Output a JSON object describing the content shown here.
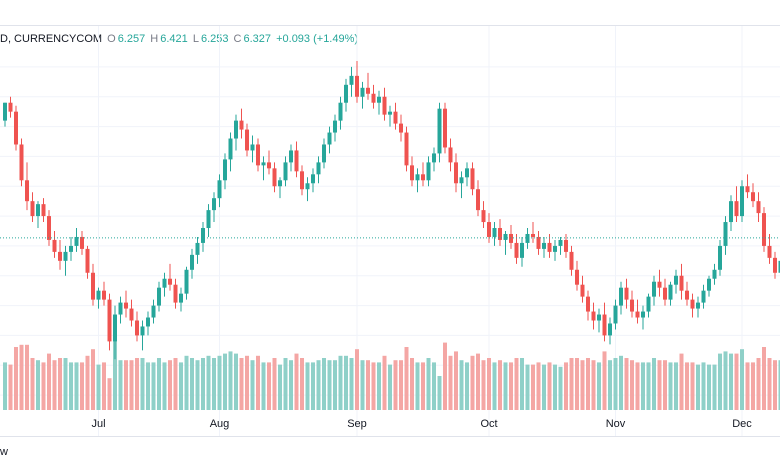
{
  "legend": {
    "symbol": "D, CURRENCYCOM",
    "open_label": "O",
    "open_value": "6.257",
    "high_label": "H",
    "high_value": "6.421",
    "low_label": "L",
    "low_value": "6.253",
    "close_label": "C",
    "close_value": "6.327",
    "change": "+0.093 (+1.49%)"
  },
  "footer_text": "w",
  "colors": {
    "up": "#26a69a",
    "down": "#ef5350",
    "vol_up": "#8fd0c8",
    "vol_down": "#f4a6a4",
    "grid": "#f0f3fa",
    "price_line": "#26a69a"
  },
  "chart_data": {
    "type": "candlestick",
    "title": "",
    "xlabel": "",
    "ylabel": "",
    "x_tick_labels": [
      "Jul",
      "Aug",
      "Sep",
      "Oct",
      "Nov",
      "Dec"
    ],
    "ylim": [
      5.75,
      6.95
    ],
    "current_price": 6.327,
    "candles": [
      [
        6.72,
        6.78,
        6.7,
        6.78
      ],
      [
        6.78,
        6.8,
        6.73,
        6.75
      ],
      [
        6.75,
        6.77,
        6.62,
        6.64
      ],
      [
        6.64,
        6.66,
        6.5,
        6.52
      ],
      [
        6.52,
        6.58,
        6.42,
        6.45
      ],
      [
        6.45,
        6.48,
        6.38,
        6.4
      ],
      [
        6.4,
        6.45,
        6.36,
        6.44
      ],
      [
        6.44,
        6.46,
        6.38,
        6.4
      ],
      [
        6.4,
        6.42,
        6.3,
        6.32
      ],
      [
        6.32,
        6.35,
        6.26,
        6.28
      ],
      [
        6.28,
        6.32,
        6.22,
        6.25
      ],
      [
        6.25,
        6.3,
        6.2,
        6.28
      ],
      [
        6.28,
        6.33,
        6.25,
        6.3
      ],
      [
        6.3,
        6.36,
        6.28,
        6.33
      ],
      [
        6.33,
        6.35,
        6.27,
        6.29
      ],
      [
        6.29,
        6.3,
        6.19,
        6.21
      ],
      [
        6.21,
        6.24,
        6.1,
        6.12
      ],
      [
        6.12,
        6.16,
        6.09,
        6.15
      ],
      [
        6.15,
        6.18,
        6.1,
        6.12
      ],
      [
        6.12,
        6.14,
        5.95,
        5.98
      ],
      [
        5.98,
        6.1,
        5.92,
        6.07
      ],
      [
        6.07,
        6.13,
        6.04,
        6.11
      ],
      [
        6.11,
        6.15,
        6.06,
        6.09
      ],
      [
        6.09,
        6.12,
        6.03,
        6.05
      ],
      [
        6.05,
        6.08,
        5.98,
        6.0
      ],
      [
        6.0,
        6.05,
        5.95,
        6.03
      ],
      [
        6.03,
        6.08,
        6.0,
        6.06
      ],
      [
        6.06,
        6.12,
        6.04,
        6.1
      ],
      [
        6.1,
        6.18,
        6.08,
        6.16
      ],
      [
        6.16,
        6.21,
        6.13,
        6.19
      ],
      [
        6.19,
        6.24,
        6.15,
        6.17
      ],
      [
        6.17,
        6.19,
        6.09,
        6.11
      ],
      [
        6.11,
        6.16,
        6.08,
        6.14
      ],
      [
        6.14,
        6.23,
        6.12,
        6.22
      ],
      [
        6.22,
        6.29,
        6.19,
        6.27
      ],
      [
        6.27,
        6.33,
        6.24,
        6.31
      ],
      [
        6.31,
        6.38,
        6.28,
        6.36
      ],
      [
        6.36,
        6.44,
        6.33,
        6.42
      ],
      [
        6.42,
        6.48,
        6.38,
        6.46
      ],
      [
        6.46,
        6.54,
        6.43,
        6.52
      ],
      [
        6.52,
        6.61,
        6.49,
        6.59
      ],
      [
        6.59,
        6.68,
        6.55,
        6.66
      ],
      [
        6.66,
        6.74,
        6.62,
        6.72
      ],
      [
        6.72,
        6.76,
        6.66,
        6.69
      ],
      [
        6.69,
        6.71,
        6.6,
        6.62
      ],
      [
        6.62,
        6.67,
        6.58,
        6.64
      ],
      [
        6.64,
        6.66,
        6.55,
        6.57
      ],
      [
        6.57,
        6.6,
        6.52,
        6.58
      ],
      [
        6.58,
        6.62,
        6.54,
        6.56
      ],
      [
        6.56,
        6.58,
        6.48,
        6.5
      ],
      [
        6.5,
        6.53,
        6.46,
        6.52
      ],
      [
        6.52,
        6.6,
        6.5,
        6.58
      ],
      [
        6.58,
        6.64,
        6.55,
        6.62
      ],
      [
        6.62,
        6.65,
        6.53,
        6.55
      ],
      [
        6.55,
        6.57,
        6.47,
        6.49
      ],
      [
        6.49,
        6.53,
        6.45,
        6.51
      ],
      [
        6.51,
        6.56,
        6.48,
        6.54
      ],
      [
        6.54,
        6.6,
        6.51,
        6.58
      ],
      [
        6.58,
        6.66,
        6.56,
        6.64
      ],
      [
        6.64,
        6.7,
        6.61,
        6.68
      ],
      [
        6.68,
        6.74,
        6.65,
        6.72
      ],
      [
        6.72,
        6.8,
        6.69,
        6.78
      ],
      [
        6.78,
        6.86,
        6.75,
        6.84
      ],
      [
        6.84,
        6.9,
        6.8,
        6.87
      ],
      [
        6.87,
        6.92,
        6.78,
        6.8
      ],
      [
        6.8,
        6.85,
        6.76,
        6.83
      ],
      [
        6.83,
        6.88,
        6.79,
        6.81
      ],
      [
        6.81,
        6.84,
        6.76,
        6.78
      ],
      [
        6.78,
        6.82,
        6.74,
        6.8
      ],
      [
        6.8,
        6.83,
        6.72,
        6.74
      ],
      [
        6.74,
        6.77,
        6.7,
        6.75
      ],
      [
        6.75,
        6.78,
        6.69,
        6.71
      ],
      [
        6.71,
        6.74,
        6.65,
        6.68
      ],
      [
        6.68,
        6.7,
        6.55,
        6.57
      ],
      [
        6.57,
        6.6,
        6.5,
        6.52
      ],
      [
        6.52,
        6.56,
        6.48,
        6.54
      ],
      [
        6.54,
        6.58,
        6.5,
        6.52
      ],
      [
        6.52,
        6.6,
        6.5,
        6.58
      ],
      [
        6.58,
        6.63,
        6.55,
        6.61
      ],
      [
        6.61,
        6.78,
        6.58,
        6.76
      ],
      [
        6.76,
        6.78,
        6.61,
        6.63
      ],
      [
        6.63,
        6.66,
        6.55,
        6.58
      ],
      [
        6.58,
        6.61,
        6.48,
        6.51
      ],
      [
        6.51,
        6.55,
        6.46,
        6.53
      ],
      [
        6.53,
        6.58,
        6.5,
        6.56
      ],
      [
        6.56,
        6.58,
        6.47,
        6.49
      ],
      [
        6.49,
        6.52,
        6.4,
        6.42
      ],
      [
        6.42,
        6.45,
        6.36,
        6.38
      ],
      [
        6.38,
        6.41,
        6.31,
        6.33
      ],
      [
        6.33,
        6.38,
        6.3,
        6.36
      ],
      [
        6.36,
        6.39,
        6.3,
        6.32
      ],
      [
        6.32,
        6.35,
        6.27,
        6.34
      ],
      [
        6.34,
        6.37,
        6.29,
        6.31
      ],
      [
        6.31,
        6.34,
        6.24,
        6.26
      ],
      [
        6.26,
        6.33,
        6.23,
        6.31
      ],
      [
        6.31,
        6.36,
        6.29,
        6.34
      ],
      [
        6.34,
        6.38,
        6.31,
        6.33
      ],
      [
        6.33,
        6.35,
        6.27,
        6.29
      ],
      [
        6.29,
        6.33,
        6.26,
        6.31
      ],
      [
        6.31,
        6.34,
        6.26,
        6.28
      ],
      [
        6.28,
        6.32,
        6.25,
        6.3
      ],
      [
        6.3,
        6.33,
        6.27,
        6.32
      ],
      [
        6.32,
        6.34,
        6.26,
        6.28
      ],
      [
        6.28,
        6.3,
        6.2,
        6.22
      ],
      [
        6.22,
        6.25,
        6.15,
        6.17
      ],
      [
        6.17,
        6.2,
        6.11,
        6.13
      ],
      [
        6.13,
        6.15,
        6.05,
        6.08
      ],
      [
        6.08,
        6.11,
        6.02,
        6.05
      ],
      [
        6.05,
        6.09,
        6.01,
        6.07
      ],
      [
        6.07,
        6.11,
        5.98,
        6.0
      ],
      [
        6.0,
        6.06,
        5.97,
        6.04
      ],
      [
        6.04,
        6.12,
        6.02,
        6.1
      ],
      [
        6.1,
        6.18,
        6.07,
        6.16
      ],
      [
        6.16,
        6.19,
        6.09,
        6.12
      ],
      [
        6.12,
        6.15,
        6.06,
        6.08
      ],
      [
        6.08,
        6.12,
        6.04,
        6.06
      ],
      [
        6.06,
        6.1,
        6.02,
        6.08
      ],
      [
        6.08,
        6.14,
        6.06,
        6.13
      ],
      [
        6.13,
        6.2,
        6.1,
        6.18
      ],
      [
        6.18,
        6.22,
        6.13,
        6.16
      ],
      [
        6.16,
        6.19,
        6.1,
        6.12
      ],
      [
        6.12,
        6.18,
        6.1,
        6.17
      ],
      [
        6.17,
        6.22,
        6.14,
        6.2
      ],
      [
        6.2,
        6.24,
        6.12,
        6.15
      ],
      [
        6.15,
        6.18,
        6.1,
        6.12
      ],
      [
        6.12,
        6.14,
        6.06,
        6.09
      ],
      [
        6.09,
        6.13,
        6.06,
        6.11
      ],
      [
        6.11,
        6.17,
        6.09,
        6.15
      ],
      [
        6.15,
        6.2,
        6.13,
        6.19
      ],
      [
        6.19,
        6.24,
        6.17,
        6.22
      ],
      [
        6.22,
        6.32,
        6.2,
        6.3
      ],
      [
        6.3,
        6.4,
        6.27,
        6.38
      ],
      [
        6.38,
        6.47,
        6.35,
        6.45
      ],
      [
        6.45,
        6.5,
        6.38,
        6.4
      ],
      [
        6.4,
        6.52,
        6.38,
        6.5
      ],
      [
        6.5,
        6.54,
        6.46,
        6.48
      ],
      [
        6.48,
        6.51,
        6.43,
        6.45
      ],
      [
        6.45,
        6.48,
        6.38,
        6.41
      ],
      [
        6.41,
        6.43,
        6.28,
        6.3
      ],
      [
        6.3,
        6.34,
        6.24,
        6.26
      ],
      [
        6.26,
        6.28,
        6.19,
        6.21
      ],
      [
        6.21,
        6.27,
        6.18,
        6.25
      ],
      [
        6.25,
        6.31,
        6.22,
        6.29
      ]
    ]
  }
}
